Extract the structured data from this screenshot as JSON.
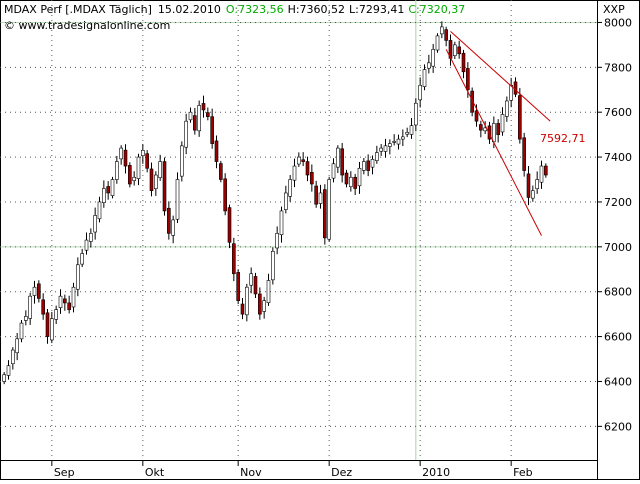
{
  "header": {
    "symbol": "MDAX Perf [.MDAX  Täglich]",
    "date": "15.02.2010",
    "open": "O:7323,56",
    "high": "H:7360,52",
    "low": "L:7293,41",
    "close": "C:7320,37",
    "watermark": "© www.tradesignalonline.com",
    "symbol_right": "XXP"
  },
  "chart_data": {
    "type": "candlestick",
    "title": "MDAX Perf [.MDAX  Täglich]",
    "ylim": [
      6050,
      8100
    ],
    "y_ticks": [
      6200,
      6400,
      6600,
      6800,
      7000,
      7200,
      7400,
      7600,
      7800,
      8000
    ],
    "y_tick_labels": [
      "6200",
      "6400",
      "6600",
      "6800",
      "7000",
      "7200",
      "7400",
      "7600",
      "7800",
      "8000"
    ],
    "x_labels": [
      {
        "label": "Sep",
        "index": 11
      },
      {
        "label": "Okt",
        "index": 32
      },
      {
        "label": "Nov",
        "index": 54
      },
      {
        "label": "Dez",
        "index": 75
      },
      {
        "label": "2010",
        "index": 96
      },
      {
        "label": "Feb",
        "index": 117
      }
    ],
    "x_count": 126,
    "grid_lines_y": [
      8000,
      7000
    ],
    "grid_line_x_index": 95,
    "close": [
      6430,
      6470,
      6540,
      6590,
      6660,
      6690,
      6780,
      6820,
      6770,
      6700,
      6600,
      6680,
      6720,
      6780,
      6750,
      6720,
      6820,
      6920,
      6970,
      7030,
      7060,
      7140,
      7200,
      7260,
      7240,
      7300,
      7380,
      7440,
      7360,
      7280,
      7310,
      7400,
      7430,
      7350,
      7250,
      7320,
      7380,
      7160,
      7060,
      7120,
      7300,
      7450,
      7560,
      7600,
      7520,
      7630,
      7610,
      7580,
      7460,
      7380,
      7300,
      7160,
      7020,
      6880,
      6760,
      6700,
      6820,
      6880,
      6790,
      6700,
      6760,
      6850,
      6980,
      7060,
      7160,
      7240,
      7300,
      7360,
      7400,
      7380,
      7320,
      7280,
      7190,
      7240,
      7040,
      7300,
      7370,
      7440,
      7320,
      7280,
      7310,
      7260,
      7350,
      7380,
      7340,
      7390,
      7420,
      7440,
      7450,
      7460,
      7470,
      7480,
      7490,
      7510,
      7540,
      7640,
      7720,
      7790,
      7820,
      7880,
      7940,
      7980,
      7920,
      7840,
      7900,
      7860,
      7780,
      7700,
      7600,
      7560,
      7520,
      7530,
      7480,
      7550,
      7500,
      7590,
      7650,
      7720,
      7680,
      7480,
      7340,
      7220,
      7250,
      7300,
      7360,
      7320
    ],
    "trendlines": [
      {
        "from": {
          "index": 103,
          "value": 7960
        },
        "to": {
          "index": 126,
          "value": 7560
        }
      },
      {
        "from": {
          "index": 102,
          "value": 7880
        },
        "to": {
          "index": 124,
          "value": 7050
        }
      }
    ],
    "annotations": [
      {
        "text": "7592,71",
        "color": "#cc0000"
      }
    ],
    "colors": {
      "up": "#ffffff",
      "down": "#990000",
      "wick": "#000000",
      "trendline": "#cc0000",
      "grid_y": "#b8dcb8",
      "grid_x": "#a8d4a8"
    }
  }
}
